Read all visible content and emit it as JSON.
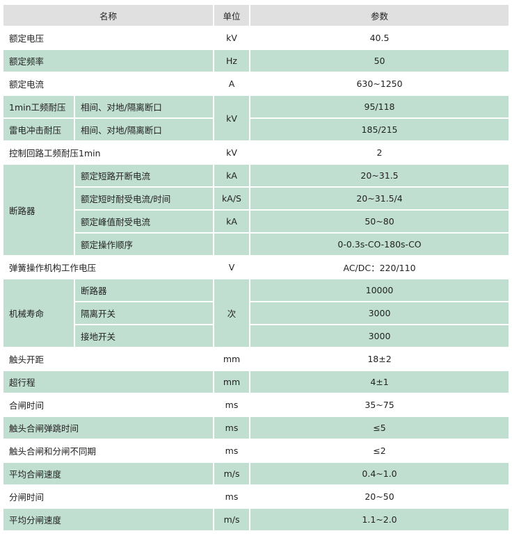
{
  "header": {
    "name": "名称",
    "unit": "单位",
    "value": "参数"
  },
  "colors": {
    "shaded": "#c1dfd1",
    "header": "#e0e0e0"
  },
  "rows": [
    {
      "name": "额定电压",
      "unit": "kV",
      "value": "40.5",
      "shaded": false
    },
    {
      "name": "额定频率",
      "unit": "Hz",
      "value": "50",
      "shaded": true
    },
    {
      "name": "额定电流",
      "unit": "A",
      "value": "630~1250",
      "shaded": false
    },
    {
      "group": [
        {
          "name": "1min工频耐压",
          "sub": "相间、对地/隔离断口",
          "value": "95/118"
        },
        {
          "name": "雷电冲击耐压",
          "sub": "相间、对地/隔离断口",
          "value": "185/215"
        }
      ],
      "unit": "kV",
      "shaded": true
    },
    {
      "name": "控制回路工频耐压1min",
      "unit": "kV",
      "value": "2",
      "shaded": false
    },
    {
      "label": "断路器",
      "items": [
        {
          "sub": "额定短路开断电流",
          "unit": "kA",
          "value": "20~31.5"
        },
        {
          "sub": "额定短时耐受电流/时间",
          "unit": "kA/S",
          "value": "20~31.5/4"
        },
        {
          "sub": "额定峰值耐受电流",
          "unit": "kA",
          "value": "50~80"
        },
        {
          "sub": "额定操作顺序",
          "unit": "",
          "value": "0-0.3s-CO-180s-CO"
        }
      ],
      "shaded": true
    },
    {
      "name": "弹簧操作机构工作电压",
      "unit": "V",
      "value": "AC/DC：220/110",
      "shaded": false
    },
    {
      "label": "机械寿命",
      "sharedUnit": "次",
      "items": [
        {
          "sub": "断路器",
          "value": "10000"
        },
        {
          "sub": "隔离开关",
          "value": "3000"
        },
        {
          "sub": "接地开关",
          "value": "3000"
        }
      ],
      "shaded": true
    },
    {
      "name": "触头开距",
      "unit": "mm",
      "value": "18±2",
      "shaded": false
    },
    {
      "name": "超行程",
      "unit": "mm",
      "value": "4±1",
      "shaded": true
    },
    {
      "name": "合闸时间",
      "unit": "ms",
      "value": "35~75",
      "shaded": false
    },
    {
      "name": "触头合闸弹跳时间",
      "unit": "ms",
      "value": "≤5",
      "shaded": true
    },
    {
      "name": "触头合闸和分闸不同期",
      "unit": "ms",
      "value": "≤2",
      "shaded": false
    },
    {
      "name": "平均合闸速度",
      "unit": "m/s",
      "value": "0.4~1.0",
      "shaded": true
    },
    {
      "name": "分闸时间",
      "unit": "ms",
      "value": "20~50",
      "shaded": false
    },
    {
      "name": "平均分闸速度",
      "unit": "m/s",
      "value": "1.1~2.0",
      "shaded": true
    }
  ]
}
